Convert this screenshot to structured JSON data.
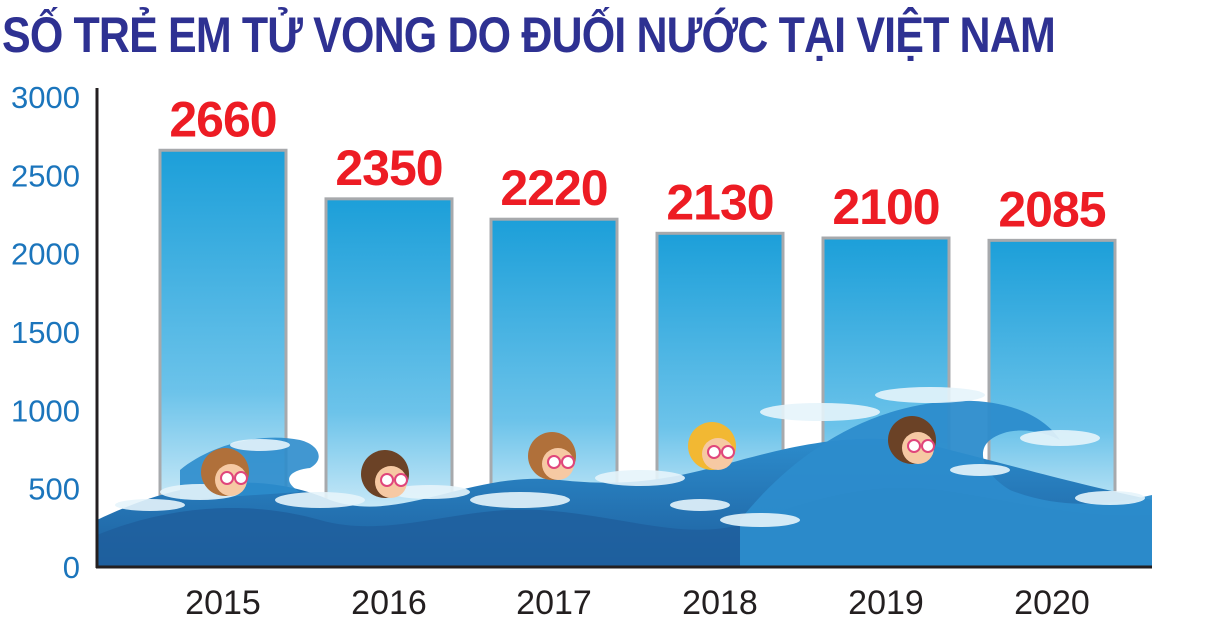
{
  "chart_data": {
    "type": "bar",
    "title": "SỐ TRẺ EM TỬ VONG DO ĐUỐI NƯỚC TẠI VIỆT NAM",
    "categories": [
      "2015",
      "2016",
      "2017",
      "2018",
      "2019",
      "2020"
    ],
    "values": [
      2660,
      2350,
      2220,
      2130,
      2100,
      2085
    ],
    "ylim": [
      0,
      3000
    ],
    "yticks": [
      0,
      500,
      1000,
      1500,
      2000,
      2500,
      3000
    ],
    "data_labels": true,
    "grid": false,
    "legend": "none"
  },
  "colors": {
    "title": "#2e3192",
    "bar_top": "#1c9fd9",
    "bar_bottom": "#ffffff",
    "bar_border": "#a7a9ac",
    "data_label": "#ed1c24",
    "y_tick": "#1b75bc",
    "x_tick": "#231f20",
    "axis": "#231f20",
    "wave_dark": "#1e5f9e",
    "wave_mid": "#2c8ccc",
    "wave_foam": "#e6f4fb"
  },
  "decoration": {
    "icons": [
      "ocean-waves",
      "swimming-children"
    ]
  }
}
